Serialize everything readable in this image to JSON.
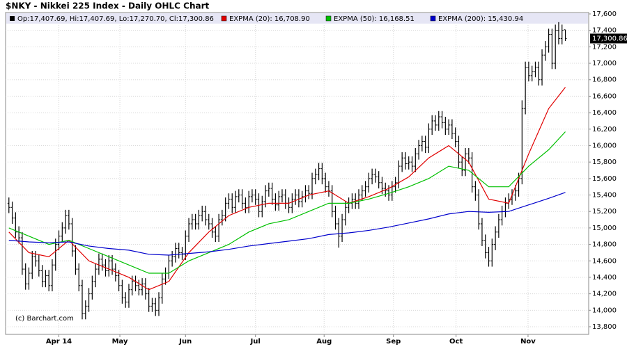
{
  "chart_data": {
    "type": "ohlc",
    "title": "$NKY - Nikkei 225 Index - Daily OHLC Chart",
    "ohlc_legend": "Op:17,407.69, Hi:17,407.69, Lo:17,270.70, Cl:17,300.86",
    "copyright": "(c) Barchart.com",
    "last_price_label": "17,300.86",
    "bar_color": "#000000",
    "grid": true,
    "xlim": [
      -1,
      174
    ],
    "xticks": [
      {
        "value": 15,
        "label": "Apr 14"
      },
      {
        "value": 33.3,
        "label": "May"
      },
      {
        "value": 53,
        "label": "Jun"
      },
      {
        "value": 74,
        "label": "Jul"
      },
      {
        "value": 94.6,
        "label": "Aug"
      },
      {
        "value": 115.4,
        "label": "Sep"
      },
      {
        "value": 134.2,
        "label": "Oct"
      },
      {
        "value": 155.8,
        "label": "Nov"
      }
    ],
    "ylim": [
      13800,
      17600
    ],
    "yticks": [
      {
        "value": 13800,
        "label": "13,800"
      },
      {
        "value": 14000,
        "label": "14,000"
      },
      {
        "value": 14200,
        "label": "14,200"
      },
      {
        "value": 14400,
        "label": "14,400"
      },
      {
        "value": 14600,
        "label": "14,600"
      },
      {
        "value": 14800,
        "label": "14,800"
      },
      {
        "value": 15000,
        "label": "15,000"
      },
      {
        "value": 15200,
        "label": "15,200"
      },
      {
        "value": 15400,
        "label": "15,400"
      },
      {
        "value": 15600,
        "label": "15,600"
      },
      {
        "value": 15800,
        "label": "15,800"
      },
      {
        "value": 16000,
        "label": "16,000"
      },
      {
        "value": 16200,
        "label": "16,200"
      },
      {
        "value": 16400,
        "label": "16,400"
      },
      {
        "value": 16600,
        "label": "16,600"
      },
      {
        "value": 16800,
        "label": "16,800"
      },
      {
        "value": 17000,
        "label": "17,000"
      },
      {
        "value": 17200,
        "label": "17,200"
      },
      {
        "value": 17400,
        "label": "17,400"
      },
      {
        "value": 17600,
        "label": "17,600"
      }
    ],
    "open": [
      15300,
      15250,
      15120,
      14950,
      14880,
      14500,
      14320,
      14450,
      14650,
      14600,
      14480,
      14350,
      14420,
      14300,
      14550,
      14800,
      14900,
      15000,
      15150,
      15050,
      14720,
      14500,
      14300,
      13960,
      14050,
      14200,
      14350,
      14500,
      14620,
      14550,
      14480,
      14600,
      14500,
      14420,
      14300,
      14150,
      14100,
      14250,
      14350,
      14300,
      14250,
      14320,
      14200,
      14050,
      14080,
      14000,
      14150,
      14380,
      14450,
      14600,
      14650,
      14750,
      14700,
      14680,
      14900,
      15050,
      15100,
      15050,
      15150,
      15200,
      15100,
      15050,
      14950,
      14900,
      15100,
      15150,
      15300,
      15350,
      15250,
      15380,
      15400,
      15300,
      15250,
      15380,
      15400,
      15350,
      15200,
      15320,
      15450,
      15480,
      15350,
      15280,
      15380,
      15400,
      15300,
      15250,
      15350,
      15400,
      15320,
      15380,
      15450,
      15420,
      15600,
      15650,
      15720,
      15600,
      15500,
      15450,
      15200,
      15050,
      14900,
      15100,
      15250,
      15300,
      15350,
      15300,
      15400,
      15450,
      15500,
      15600,
      15650,
      15620,
      15550,
      15480,
      15450,
      15400,
      15500,
      15550,
      15750,
      15850,
      15780,
      15800,
      15750,
      15900,
      16000,
      16050,
      15980,
      16200,
      16300,
      16250,
      16350,
      16280,
      16200,
      16250,
      16150,
      16050,
      15800,
      15700,
      15900,
      15850,
      15500,
      15400,
      15050,
      14850,
      14700,
      14600,
      14800,
      14950,
      15100,
      15200,
      15300,
      15350,
      15400,
      15450,
      15600,
      16450,
      16950,
      16850,
      16900,
      16950,
      16800,
      17100,
      17200,
      17350,
      17000,
      17400,
      17300,
      17407.69
    ],
    "high": [
      15370,
      15320,
      15190,
      15020,
      14950,
      14570,
      14520,
      14720,
      14720,
      14670,
      14550,
      14490,
      14490,
      14620,
      14870,
      14970,
      15070,
      15220,
      15220,
      15120,
      14790,
      14570,
      14370,
      14120,
      14270,
      14420,
      14570,
      14690,
      14690,
      14620,
      14670,
      14670,
      14570,
      14490,
      14370,
      14220,
      14320,
      14420,
      14420,
      14370,
      14390,
      14390,
      14270,
      14150,
      14150,
      14220,
      14450,
      14520,
      14670,
      14720,
      14820,
      14820,
      14770,
      14970,
      15120,
      15170,
      15170,
      15220,
      15270,
      15270,
      15170,
      15120,
      15020,
      15170,
      15220,
      15370,
      15420,
      15420,
      15450,
      15470,
      15470,
      15370,
      15450,
      15470,
      15470,
      15420,
      15390,
      15520,
      15550,
      15550,
      15420,
      15450,
      15470,
      15470,
      15370,
      15420,
      15470,
      15470,
      15450,
      15520,
      15520,
      15670,
      15720,
      15790,
      15790,
      15670,
      15570,
      15520,
      15270,
      15120,
      15170,
      15320,
      15370,
      15420,
      15420,
      15470,
      15520,
      15570,
      15670,
      15720,
      15720,
      15690,
      15620,
      15550,
      15520,
      15570,
      15620,
      15820,
      15920,
      15920,
      15870,
      15870,
      15970,
      16070,
      16120,
      16120,
      16270,
      16370,
      16370,
      16420,
      16420,
      16350,
      16320,
      16320,
      16220,
      16120,
      15870,
      15970,
      15970,
      15920,
      15570,
      15470,
      15120,
      14920,
      14770,
      14870,
      15020,
      15170,
      15270,
      15370,
      15420,
      15470,
      15520,
      15670,
      16550,
      17020,
      17020,
      16970,
      17020,
      17020,
      17170,
      17270,
      17420,
      17420,
      17470,
      17500,
      17470,
      17407.69
    ],
    "low": [
      15180,
      15050,
      14880,
      14810,
      14430,
      14250,
      14250,
      14380,
      14530,
      14410,
      14280,
      14280,
      14230,
      14230,
      14480,
      14730,
      14830,
      14930,
      14980,
      14650,
      14430,
      14230,
      13890,
      13890,
      13980,
      14130,
      14280,
      14430,
      14480,
      14410,
      14410,
      14430,
      14350,
      14230,
      14080,
      14030,
      14030,
      14180,
      14230,
      14180,
      14180,
      14130,
      13980,
      13980,
      13930,
      13930,
      14080,
      14310,
      14380,
      14530,
      14580,
      14630,
      14610,
      14610,
      14830,
      14980,
      14980,
      14980,
      15080,
      15030,
      14980,
      14880,
      14830,
      14830,
      15030,
      15080,
      15230,
      15180,
      15180,
      15310,
      15230,
      15180,
      15180,
      15310,
      15280,
      15130,
      15130,
      15250,
      15380,
      15280,
      15210,
      15210,
      15310,
      15230,
      15180,
      15180,
      15280,
      15250,
      15250,
      15310,
      15350,
      15350,
      15530,
      15580,
      15530,
      15430,
      15380,
      15130,
      14980,
      14760,
      14830,
      15030,
      15180,
      15230,
      15230,
      15230,
      15330,
      15380,
      15430,
      15530,
      15550,
      15480,
      15410,
      15380,
      15330,
      15330,
      15430,
      15480,
      15680,
      15710,
      15710,
      15680,
      15680,
      15830,
      15930,
      15910,
      15910,
      16130,
      16180,
      16180,
      16210,
      16130,
      16130,
      16080,
      15980,
      15730,
      15630,
      15630,
      15780,
      15430,
      15330,
      14980,
      14780,
      14630,
      14530,
      14530,
      14730,
      14880,
      15030,
      15130,
      15230,
      15280,
      15330,
      15380,
      15530,
      16380,
      16780,
      16780,
      16830,
      16730,
      16730,
      17030,
      17130,
      16930,
      16930,
      17230,
      17230,
      17270.7
    ],
    "close": [
      15250,
      15120,
      14950,
      14880,
      14500,
      14320,
      14450,
      14650,
      14600,
      14480,
      14350,
      14420,
      14300,
      14550,
      14800,
      14900,
      15000,
      15150,
      15050,
      14720,
      14500,
      14300,
      13960,
      14050,
      14200,
      14350,
      14500,
      14620,
      14550,
      14480,
      14600,
      14500,
      14420,
      14300,
      14150,
      14100,
      14250,
      14350,
      14300,
      14250,
      14320,
      14200,
      14050,
      14080,
      14000,
      14150,
      14380,
      14450,
      14600,
      14650,
      14750,
      14700,
      14680,
      14900,
      15050,
      15100,
      15050,
      15150,
      15200,
      15100,
      15050,
      14950,
      14900,
      15100,
      15150,
      15300,
      15350,
      15250,
      15380,
      15400,
      15300,
      15250,
      15380,
      15400,
      15350,
      15200,
      15320,
      15450,
      15480,
      15350,
      15280,
      15380,
      15400,
      15300,
      15250,
      15350,
      15400,
      15320,
      15380,
      15450,
      15420,
      15600,
      15650,
      15720,
      15600,
      15500,
      15450,
      15200,
      15050,
      14900,
      15100,
      15250,
      15300,
      15350,
      15300,
      15400,
      15450,
      15500,
      15600,
      15650,
      15620,
      15550,
      15480,
      15450,
      15400,
      15500,
      15550,
      15750,
      15850,
      15780,
      15800,
      15750,
      15900,
      16000,
      16050,
      15980,
      16200,
      16300,
      16250,
      16350,
      16280,
      16200,
      16250,
      16150,
      16050,
      15800,
      15700,
      15900,
      15850,
      15500,
      15400,
      15050,
      14850,
      14700,
      14600,
      14800,
      14950,
      15100,
      15200,
      15300,
      15350,
      15400,
      15450,
      15600,
      16450,
      16950,
      16850,
      16900,
      16950,
      16800,
      17100,
      17200,
      17350,
      17000,
      17400,
      17300,
      17400,
      17300.86
    ],
    "series": [
      {
        "name": "EXPMA (20): 16,708.90",
        "color": "#e00000",
        "x": [
          0,
          6,
          12,
          18,
          24,
          30,
          36,
          42,
          48,
          54,
          60,
          66,
          72,
          78,
          84,
          90,
          96,
          102,
          108,
          114,
          120,
          126,
          132,
          138,
          144,
          150,
          156,
          162,
          167
        ],
        "values": [
          14950,
          14700,
          14650,
          14850,
          14600,
          14500,
          14400,
          14250,
          14350,
          14700,
          14950,
          15150,
          15250,
          15300,
          15300,
          15400,
          15450,
          15300,
          15380,
          15480,
          15620,
          15850,
          16000,
          15800,
          15350,
          15300,
          15900,
          16450,
          16708.9
        ]
      },
      {
        "name": "EXPMA (50): 16,168.51",
        "color": "#00c000",
        "x": [
          0,
          6,
          12,
          18,
          24,
          30,
          36,
          42,
          48,
          54,
          60,
          66,
          72,
          78,
          84,
          90,
          96,
          102,
          108,
          114,
          120,
          126,
          132,
          138,
          144,
          150,
          156,
          162,
          167
        ],
        "values": [
          15000,
          14900,
          14800,
          14850,
          14750,
          14650,
          14550,
          14450,
          14450,
          14600,
          14700,
          14800,
          14950,
          15050,
          15100,
          15200,
          15300,
          15300,
          15350,
          15420,
          15500,
          15600,
          15750,
          15700,
          15500,
          15500,
          15750,
          15950,
          16168.51
        ]
      },
      {
        "name": "EXPMA (200): 15,430.94",
        "color": "#0000cc",
        "x": [
          0,
          6,
          12,
          18,
          24,
          30,
          36,
          42,
          48,
          54,
          60,
          66,
          72,
          78,
          84,
          90,
          96,
          102,
          108,
          114,
          120,
          126,
          132,
          138,
          144,
          150,
          156,
          162,
          167
        ],
        "values": [
          14850,
          14830,
          14820,
          14830,
          14780,
          14750,
          14730,
          14680,
          14670,
          14690,
          14710,
          14740,
          14780,
          14810,
          14840,
          14870,
          14920,
          14940,
          14970,
          15010,
          15060,
          15110,
          15170,
          15200,
          15190,
          15200,
          15280,
          15360,
          15430.94
        ]
      }
    ]
  }
}
